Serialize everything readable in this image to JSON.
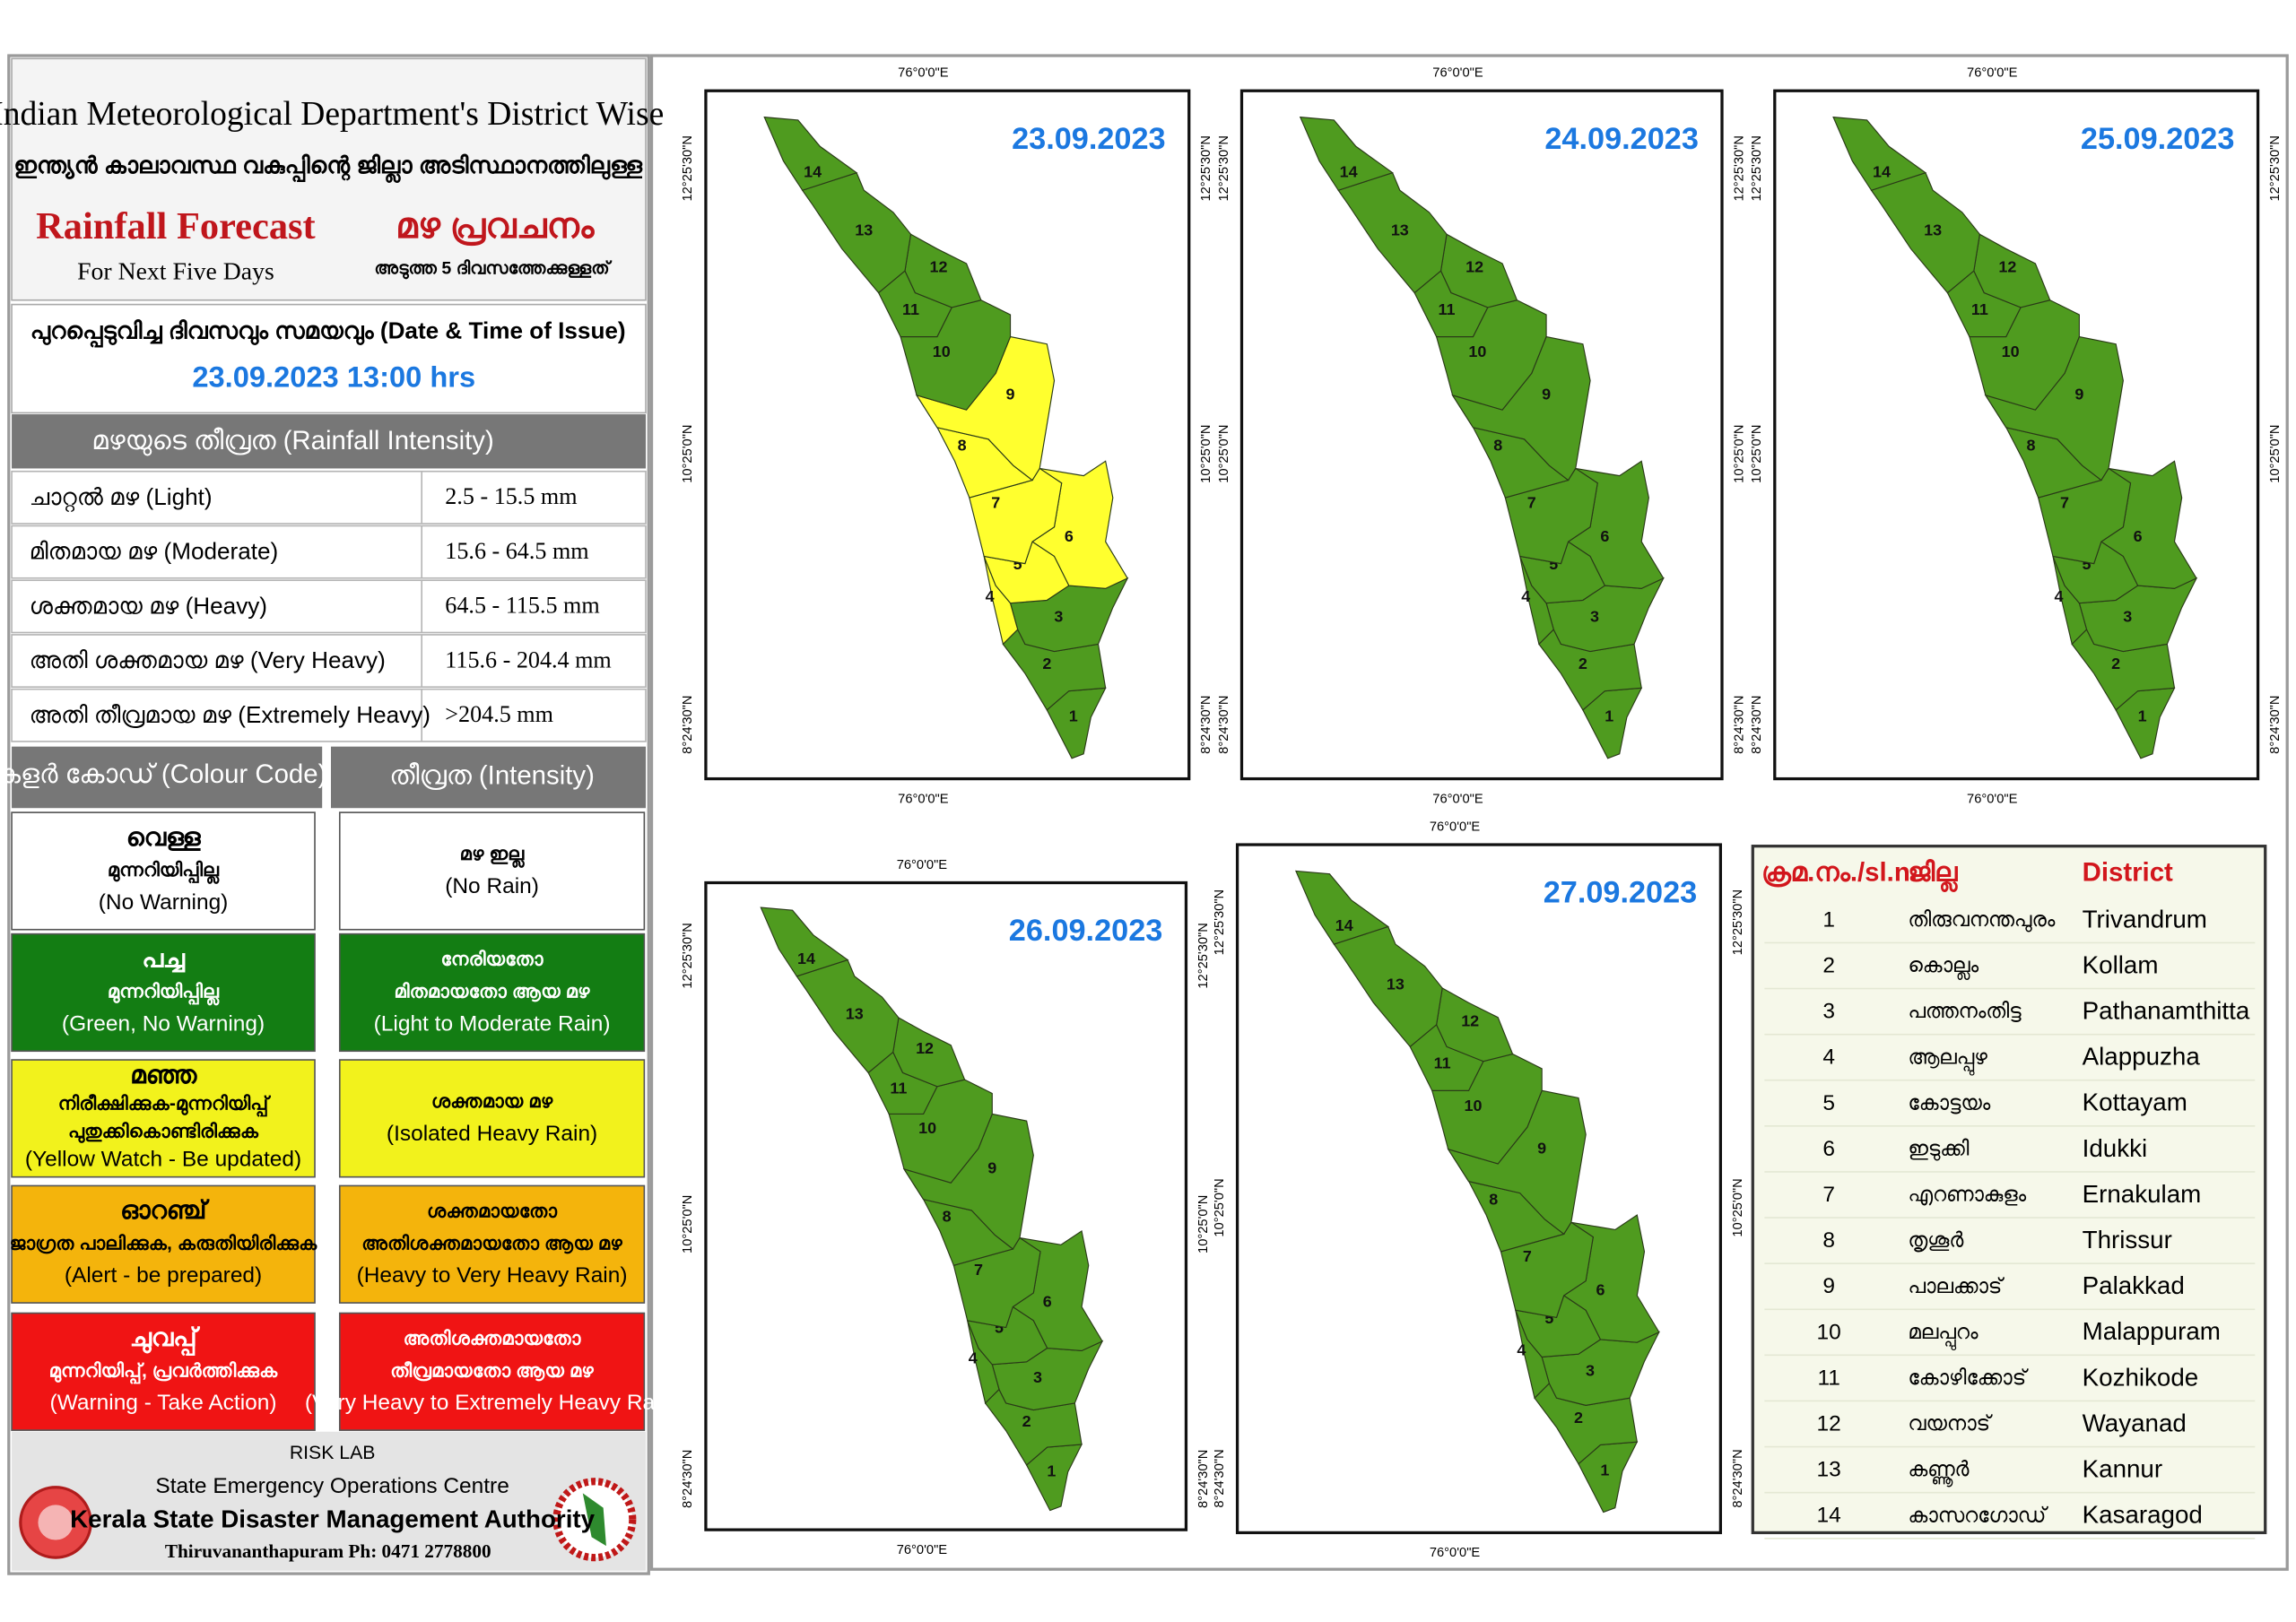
{
  "header": {
    "title": "Indian Meteorological Department's District Wise",
    "subtitle_ml": "ഇന്ത്യൻ കാലാവസ്ഥ വകുപ്പിന്റെ ജില്ലാ അടിസ്ഥാനത്തിലുള്ള",
    "forecast_title": "Rainfall Forecast",
    "forecast_title_ml": "മഴ പ്രവചനം",
    "period": "For Next Five Days",
    "period_ml": "അടുത്ത 5 ദിവസത്തേക്കുള്ളത്"
  },
  "issue": {
    "label": "പുറപ്പെടുവിച്ച ദിവസവും സമയവും (Date & Time of Issue)",
    "value": "23.09.2023 13:00 hrs"
  },
  "intensity": {
    "heading": "മഴയുടെ തീവ്രത (Rainfall Intensity)",
    "rows": [
      [
        "ചാറ്റൽ മഴ (Light)",
        "2.5 - 15.5 mm"
      ],
      [
        "മിതമായ മഴ (Moderate)",
        "15.6 - 64.5 mm"
      ],
      [
        "ശക്തമായ മഴ (Heavy)",
        "64.5 - 115.5 mm"
      ],
      [
        "അതി ശക്തമായ മഴ (Very Heavy)",
        "115.6 - 204.4 mm"
      ],
      [
        "അതി തീവ്രമായ മഴ (Extremely Heavy)",
        ">204.5 mm"
      ]
    ]
  },
  "colour_code": {
    "headers": [
      "കളർ കോഡ് (Colour Code)",
      "തീവ്രത (Intensity)"
    ],
    "rows": [
      {
        "color": "#ffffff",
        "text_color": "#000000",
        "code": [
          "വെള്ള",
          "മുന്നറിയിപ്പില്ല",
          "(No Warning)"
        ],
        "intensity": [
          "മഴ ഇല്ല",
          "(No Rain)"
        ]
      },
      {
        "color": "#137d13",
        "text_color": "#ffffff",
        "code": [
          "പച്ച",
          "മുന്നറിയിപ്പില്ല",
          "(Green, No Warning)"
        ],
        "intensity": [
          "നേരിയതോ",
          "മിതമായതോ ആയ മഴ",
          "(Light to Moderate Rain)"
        ]
      },
      {
        "color": "#f2f21c",
        "text_color": "#000000",
        "code": [
          "മഞ്ഞ",
          "നിരീക്ഷിക്കുക-മുന്നറിയിപ്പ്",
          "പുതുക്കികൊണ്ടിരിക്കുക",
          "(Yellow Watch - Be updated)"
        ],
        "intensity": [
          "ശക്തമായ മഴ",
          "(Isolated Heavy Rain)"
        ]
      },
      {
        "color": "#f4b40c",
        "text_color": "#000000",
        "code": [
          "ഓറഞ്ച്",
          "ജാഗ്രത പാലിക്കുക, കരുതിയിരിക്കുക",
          "(Alert - be prepared)"
        ],
        "intensity": [
          "ശക്തമായതോ",
          "അതിശക്തമായതോ ആയ മഴ",
          "(Heavy to Very Heavy Rain)"
        ]
      },
      {
        "color": "#f01414",
        "text_color": "#ffffff",
        "code": [
          "ചുവപ്പ്",
          "മുന്നറിയിപ്പ്, പ്രവർത്തിക്കുക",
          "(Warning - Take Action)"
        ],
        "intensity": [
          "അതിശക്തമായതോ",
          "തീവ്രമായതോ ആയ മഴ",
          "(Very Heavy to Extremely Heavy Rain)"
        ]
      }
    ]
  },
  "footer": {
    "lines": [
      "RISK LAB",
      "State Emergency Operations Centre",
      "Kerala State Disaster Management Authority",
      "Thiruvananthapuram Ph: 0471 2778800"
    ]
  },
  "map_axes": {
    "longitude": "76°0'0\"E",
    "latitudes": [
      "12°25'30\"N",
      "10°25'0\"N",
      "8°24'30\"N"
    ]
  },
  "alert_colors": {
    "green": "#4f9b1f",
    "yellow": "#ffff2e"
  },
  "maps": [
    {
      "date": "23.09.2023",
      "alerts": [
        "green",
        "green",
        "green",
        "yellow",
        "yellow",
        "yellow",
        "yellow",
        "yellow",
        "yellow",
        "green",
        "green",
        "green",
        "green",
        "green"
      ]
    },
    {
      "date": "24.09.2023",
      "alerts": [
        "green",
        "green",
        "green",
        "green",
        "green",
        "green",
        "green",
        "green",
        "green",
        "green",
        "green",
        "green",
        "green",
        "green"
      ]
    },
    {
      "date": "25.09.2023",
      "alerts": [
        "green",
        "green",
        "green",
        "green",
        "green",
        "green",
        "green",
        "green",
        "green",
        "green",
        "green",
        "green",
        "green",
        "green"
      ]
    },
    {
      "date": "26.09.2023",
      "alerts": [
        "green",
        "green",
        "green",
        "green",
        "green",
        "green",
        "green",
        "green",
        "green",
        "green",
        "green",
        "green",
        "green",
        "green"
      ]
    },
    {
      "date": "27.09.2023",
      "alerts": [
        "green",
        "green",
        "green",
        "green",
        "green",
        "green",
        "green",
        "green",
        "green",
        "green",
        "green",
        "green",
        "green",
        "green"
      ]
    }
  ],
  "district_table": {
    "headers": [
      "ക്രമ.നം./sl.n.",
      "ജില്ല",
      "District"
    ],
    "rows": [
      [
        1,
        "തിരുവനന്തപുരം",
        "Trivandrum"
      ],
      [
        2,
        "കൊല്ലം",
        "Kollam"
      ],
      [
        3,
        "പത്തനംതിട്ട",
        "Pathanamthitta"
      ],
      [
        4,
        "ആലപ്പുഴ",
        "Alappuzha"
      ],
      [
        5,
        "കോട്ടയം",
        "Kottayam"
      ],
      [
        6,
        "ഇടുക്കി",
        "Idukki"
      ],
      [
        7,
        "എറണാകുളം",
        "Ernakulam"
      ],
      [
        8,
        "തൃശൂർ",
        "Thrissur"
      ],
      [
        9,
        "പാലക്കാട്",
        "Palakkad"
      ],
      [
        10,
        "മലപ്പുറം",
        "Malappuram"
      ],
      [
        11,
        "കോഴിക്കോട്",
        "Kozhikode"
      ],
      [
        12,
        "വയനാട്",
        "Wayanad"
      ],
      [
        13,
        "കണ്ണൂർ",
        "Kannur"
      ],
      [
        14,
        "കാസറഗോഡ്",
        "Kasaragod"
      ]
    ]
  }
}
